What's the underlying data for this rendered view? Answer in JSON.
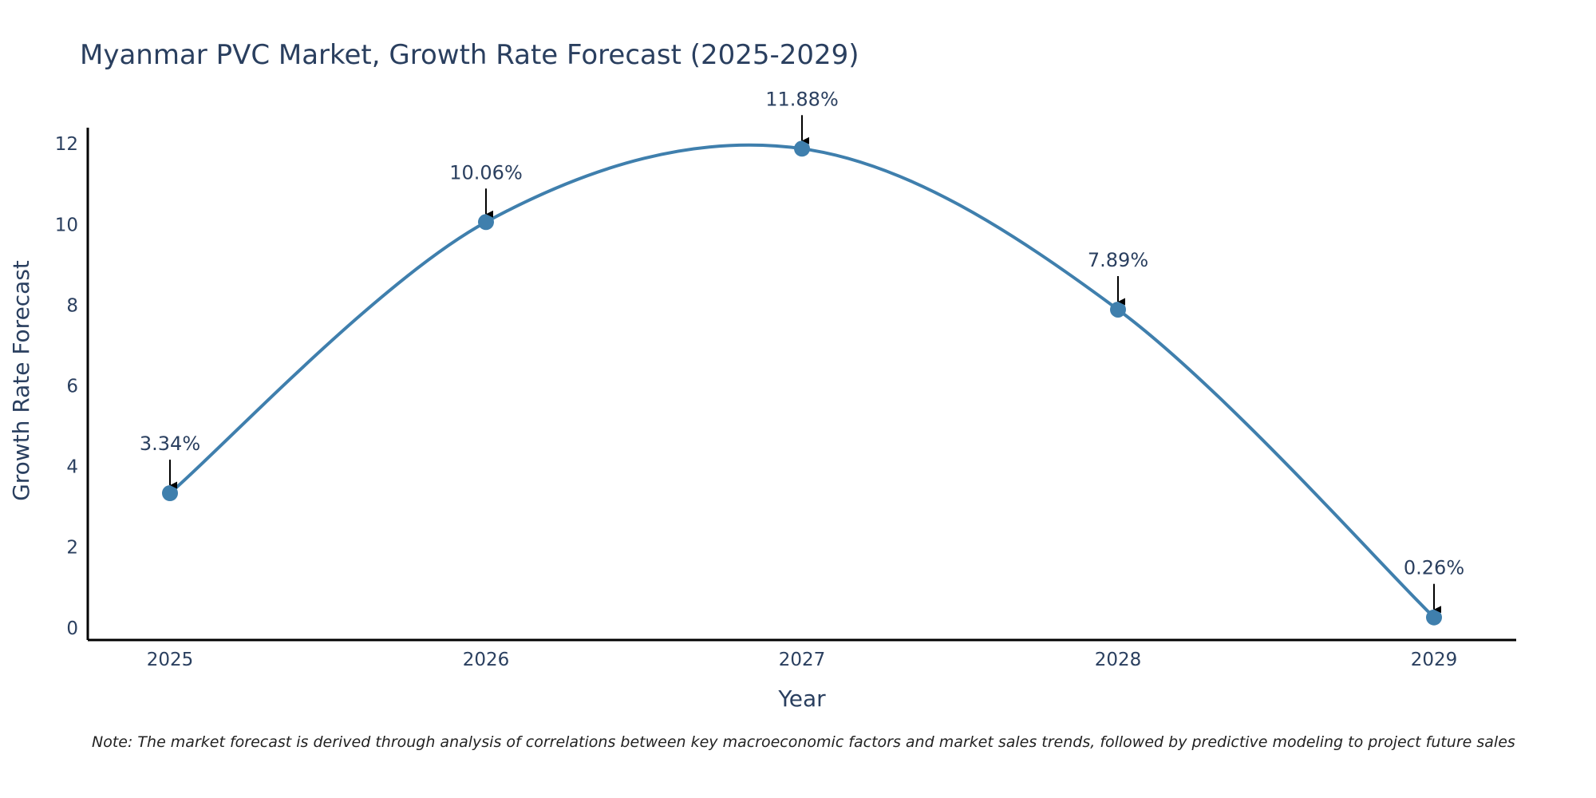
{
  "chart_data": {
    "type": "line",
    "title": "Myanmar PVC Market, Growth Rate Forecast (2025-2029)",
    "xlabel": "Year",
    "ylabel": "Growth Rate Forecast",
    "categories": [
      "2025",
      "2026",
      "2027",
      "2028",
      "2029"
    ],
    "values": [
      3.34,
      10.06,
      11.88,
      7.89,
      0.26
    ],
    "data_labels": [
      "3.34%",
      "10.06%",
      "11.88%",
      "7.89%",
      "0.26%"
    ],
    "yticks": [
      0,
      2,
      4,
      6,
      8,
      10,
      12
    ],
    "ylim": [
      -0.3,
      12.4
    ],
    "grid": false,
    "legend": "none",
    "line_shape": "spline",
    "colors": {
      "line": "#3f7fad",
      "marker": "#3f7fad",
      "text": "#2a3f5f",
      "axis": "#000000",
      "arrow": "#000000"
    }
  },
  "note": "Note: The market forecast is derived through analysis of correlations between key macroeconomic factors and market sales trends, followed by predictive modeling to project future sales"
}
